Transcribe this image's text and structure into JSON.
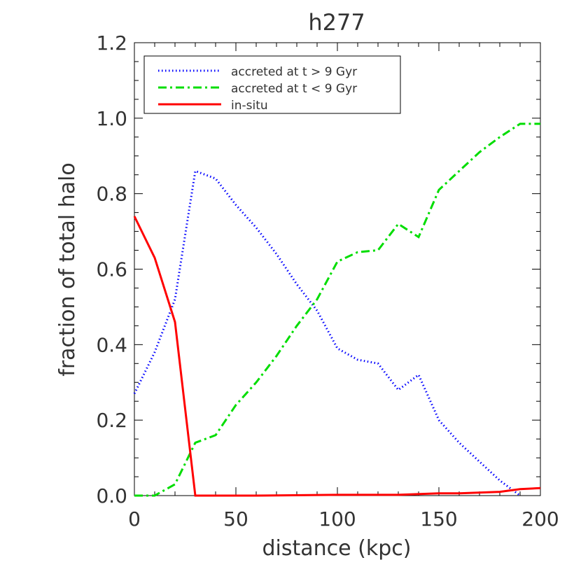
{
  "chart_data": {
    "type": "line",
    "title": "h277",
    "xlabel": "distance (kpc)",
    "ylabel": "fraction of total halo",
    "xlim": [
      0,
      200
    ],
    "ylim": [
      0,
      1.2
    ],
    "x_ticks": [
      0,
      50,
      100,
      150,
      200
    ],
    "x_tick_labels": [
      "0",
      "50",
      "100",
      "150",
      "200"
    ],
    "y_ticks": [
      0,
      0.2,
      0.4,
      0.6,
      0.8,
      1.0,
      1.2
    ],
    "y_tick_labels": [
      "0.0",
      "0.2",
      "0.4",
      "0.6",
      "0.8",
      "1.0",
      "1.2"
    ],
    "legend_position": "top-left",
    "grid": false,
    "series": [
      {
        "name": "accreted at t > 9 Gyr",
        "color": "#0000ff",
        "style": "dotted",
        "x": [
          0,
          10,
          20,
          30,
          40,
          50,
          60,
          70,
          80,
          90,
          100,
          110,
          120,
          130,
          140,
          150,
          160,
          170,
          180,
          190
        ],
        "y": [
          0.27,
          0.38,
          0.52,
          0.86,
          0.84,
          0.77,
          0.71,
          0.64,
          0.56,
          0.49,
          0.39,
          0.36,
          0.35,
          0.28,
          0.32,
          0.2,
          0.14,
          0.09,
          0.04,
          0.0
        ]
      },
      {
        "name": "accreted at t < 9 Gyr",
        "color": "#00dd00",
        "style": "dashdot",
        "x": [
          0,
          10,
          20,
          30,
          40,
          50,
          60,
          70,
          80,
          90,
          100,
          110,
          120,
          130,
          140,
          150,
          160,
          170,
          180,
          190,
          200
        ],
        "y": [
          0.0,
          0.0,
          0.03,
          0.14,
          0.16,
          0.24,
          0.3,
          0.37,
          0.45,
          0.52,
          0.62,
          0.645,
          0.65,
          0.72,
          0.685,
          0.81,
          0.86,
          0.91,
          0.95,
          0.985,
          0.985
        ]
      },
      {
        "name": "in-situ",
        "color": "#ff0000",
        "style": "solid",
        "x": [
          0,
          10,
          20,
          30,
          60,
          100,
          130,
          150,
          160,
          180,
          190,
          200
        ],
        "y": [
          0.74,
          0.63,
          0.46,
          0.0,
          0.0,
          0.002,
          0.002,
          0.006,
          0.006,
          0.01,
          0.017,
          0.02
        ]
      }
    ]
  }
}
